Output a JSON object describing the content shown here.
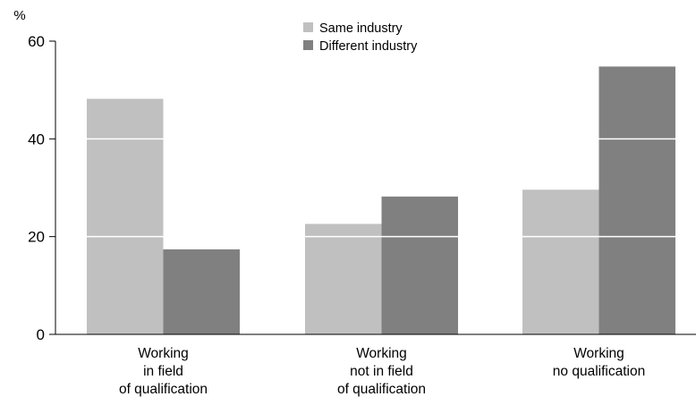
{
  "chart_data": {
    "type": "bar",
    "title": "",
    "ylabel": "%",
    "xlabel": "",
    "ylim": [
      0,
      60
    ],
    "yticks": [
      0,
      20,
      40,
      60
    ],
    "grid": false,
    "legend_position": "top-center",
    "categories": [
      [
        "Working",
        "in field",
        "of qualification"
      ],
      [
        "Working",
        "not in field",
        "of qualification"
      ],
      [
        "Working",
        "no qualification"
      ]
    ],
    "series": [
      {
        "name": "Same industry",
        "color": "#c0c0c0",
        "values": [
          48.2,
          22.6,
          29.6
        ]
      },
      {
        "name": "Different industry",
        "color": "#808080",
        "values": [
          17.4,
          28.2,
          54.8
        ]
      }
    ]
  }
}
